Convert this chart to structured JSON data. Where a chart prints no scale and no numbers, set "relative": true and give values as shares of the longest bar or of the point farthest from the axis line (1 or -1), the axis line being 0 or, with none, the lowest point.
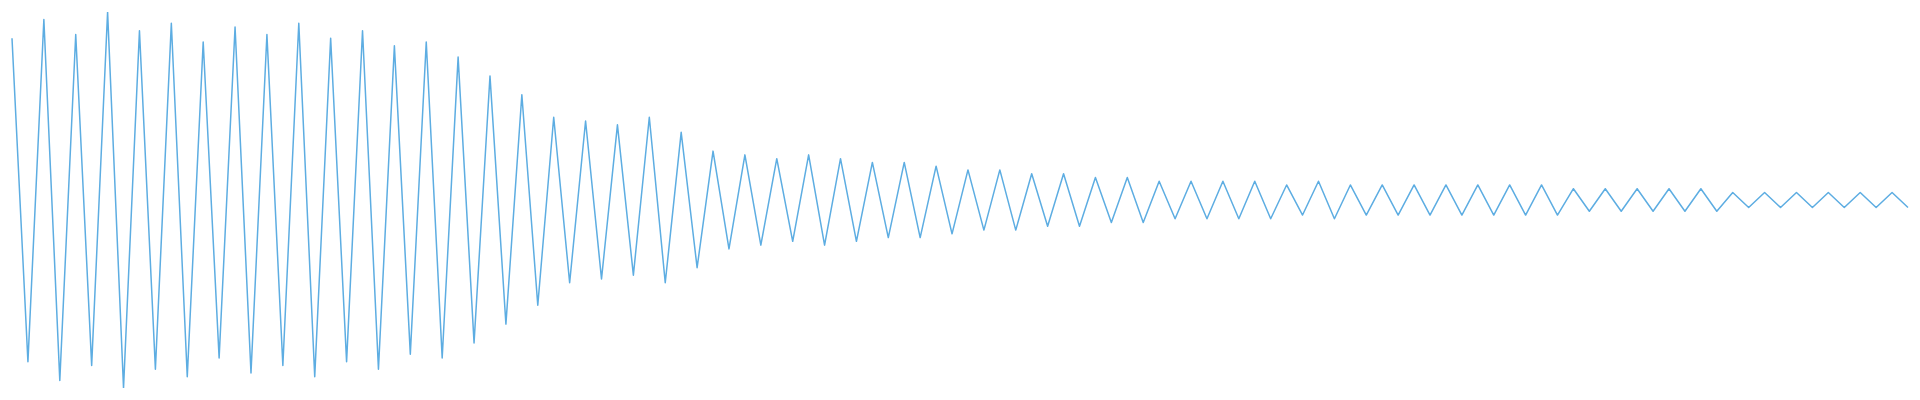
{
  "chart_data": {
    "type": "line",
    "relative": true,
    "categories": [
      null,
      null,
      null,
      null,
      null,
      null,
      null,
      null,
      null,
      null,
      null,
      null,
      null,
      null,
      null,
      null,
      null,
      null,
      null,
      null,
      null,
      null,
      null,
      null,
      null,
      null,
      null,
      null,
      null,
      null,
      null,
      null,
      null,
      null,
      null,
      null,
      null,
      null,
      null,
      null,
      null,
      null,
      null,
      null,
      null,
      null,
      null,
      null,
      null,
      null,
      null,
      null,
      null,
      null,
      null,
      null,
      null,
      null,
      null,
      null,
      null,
      null,
      null,
      null,
      null,
      null,
      null,
      null,
      null,
      null,
      null,
      null,
      null,
      null,
      null,
      null,
      null,
      null,
      null,
      null,
      null,
      null,
      null,
      null,
      null,
      null,
      null,
      null,
      null,
      null,
      null,
      null,
      null,
      null,
      null,
      null,
      null,
      null,
      null,
      null,
      null,
      null,
      null,
      null,
      null,
      null,
      null,
      null,
      null,
      null,
      null,
      null,
      null,
      null,
      null,
      null,
      null,
      null,
      null,
      null
    ],
    "series": [
      {
        "color": "#5dade2",
        "values": [
          0.93,
          0.07,
          0.98,
          0.02,
          0.94,
          0.06,
          1.0,
          0.0,
          0.95,
          0.05,
          0.97,
          0.03,
          0.92,
          0.08,
          0.96,
          0.04,
          0.94,
          0.06,
          0.97,
          0.03,
          0.93,
          0.07,
          0.95,
          0.05,
          0.91,
          0.09,
          0.92,
          0.08,
          0.88,
          0.12,
          0.83,
          0.17,
          0.78,
          0.22,
          0.72,
          0.28,
          0.71,
          0.29,
          0.7,
          0.3,
          0.72,
          0.28,
          0.68,
          0.32,
          0.63,
          0.37,
          0.62,
          0.38,
          0.61,
          0.39,
          0.62,
          0.38,
          0.61,
          0.39,
          0.6,
          0.4,
          0.6,
          0.4,
          0.59,
          0.41,
          0.58,
          0.42,
          0.58,
          0.42,
          0.57,
          0.43,
          0.57,
          0.43,
          0.56,
          0.44,
          0.56,
          0.44,
          0.55,
          0.45,
          0.55,
          0.45,
          0.55,
          0.45,
          0.55,
          0.45,
          0.54,
          0.46,
          0.55,
          0.45,
          0.54,
          0.46,
          0.54,
          0.46,
          0.54,
          0.46,
          0.54,
          0.46,
          0.54,
          0.46,
          0.54,
          0.46,
          0.54,
          0.46,
          0.53,
          0.47,
          0.53,
          0.47,
          0.53,
          0.47,
          0.53,
          0.47,
          0.53,
          0.47,
          0.52,
          0.48,
          0.52,
          0.48,
          0.52,
          0.48,
          0.52,
          0.48,
          0.52,
          0.48,
          0.52,
          0.48
        ]
      }
    ]
  }
}
